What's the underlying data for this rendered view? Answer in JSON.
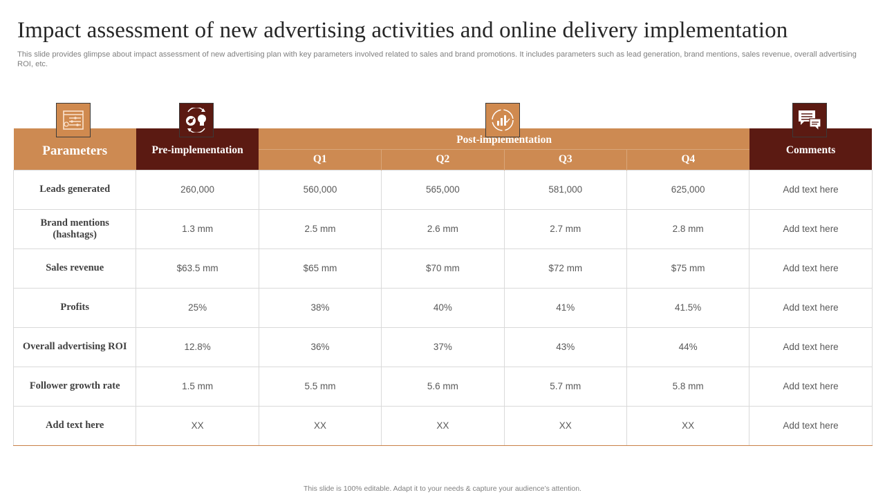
{
  "page": {
    "title": "Impact assessment of new advertising activities and online delivery implementation",
    "subtitle": "This slide provides glimpse about impact assessment of new advertising plan with key parameters involved related to sales and brand promotions. It includes parameters such as lead generation, brand mentions, sales revenue, overall advertising ROI, etc.",
    "footer": "This slide is 100% editable.  Adapt it to your needs & capture your audience’s attention."
  },
  "icons": {
    "parameters": "settings-sliders-icon",
    "pre_implementation": "gears-lightbulb-icon",
    "post_implementation": "growth-chart-icon",
    "comments": "chat-bubbles-icon"
  },
  "colors": {
    "orange": "#cd8a52",
    "dark": "#5b1a12"
  },
  "table": {
    "headers": {
      "parameters": "Parameters",
      "pre_implementation": "Pre-implementation",
      "post_implementation": "Post-implementation",
      "quarters": [
        "Q1",
        "Q2",
        "Q3",
        "Q4"
      ],
      "comments": "Comments"
    },
    "rows": [
      {
        "parameter": "Leads generated",
        "pre": "260,000",
        "q": [
          "560,000",
          "565,000",
          "581,000",
          "625,000"
        ],
        "comment": "Add text here"
      },
      {
        "parameter": "Brand mentions (hashtags)",
        "pre": "1.3 mm",
        "q": [
          "2.5 mm",
          "2.6 mm",
          "2.7 mm",
          "2.8 mm"
        ],
        "comment": "Add text here"
      },
      {
        "parameter": "Sales revenue",
        "pre": "$63.5 mm",
        "q": [
          "$65 mm",
          "$70 mm",
          "$72 mm",
          "$75 mm"
        ],
        "comment": "Add text here"
      },
      {
        "parameter": "Profits",
        "pre": "25%",
        "q": [
          "38%",
          "40%",
          "41%",
          "41.5%"
        ],
        "comment": "Add text here"
      },
      {
        "parameter": "Overall advertising ROI",
        "pre": "12.8%",
        "q": [
          "36%",
          "37%",
          "43%",
          "44%"
        ],
        "comment": "Add text here"
      },
      {
        "parameter": "Follower growth rate",
        "pre": "1.5 mm",
        "q": [
          "5.5 mm",
          "5.6 mm",
          "5.7 mm",
          "5.8 mm"
        ],
        "comment": "Add text here"
      },
      {
        "parameter": "Add text here",
        "pre": "XX",
        "q": [
          "XX",
          "XX",
          "XX",
          "XX"
        ],
        "comment": "Add text here"
      }
    ]
  }
}
